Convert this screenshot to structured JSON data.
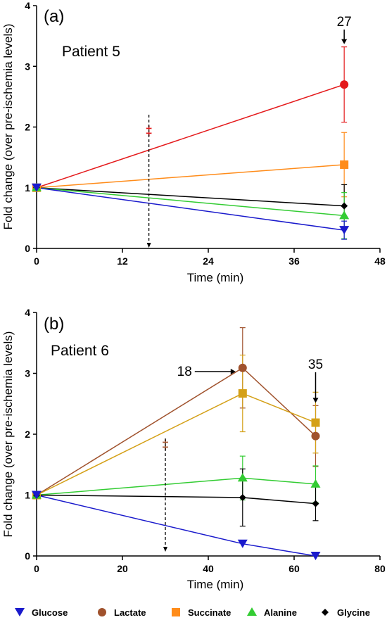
{
  "chart_data": [
    {
      "type": "line",
      "panel_label": "(a)",
      "patient_label": "Patient 5",
      "xlabel": "Time (min)",
      "ylabel": "Fold change (over pre-ischemia levels)",
      "xlim": [
        0,
        48
      ],
      "ylim": [
        0,
        4
      ],
      "xticks": [
        "0",
        "12",
        "24",
        "36",
        "48"
      ],
      "yticks": [
        "0",
        "1",
        "2",
        "3",
        "4"
      ],
      "x": [
        0,
        43
      ],
      "series": [
        {
          "name": "Lactate",
          "color": "#e41a1c",
          "marker": "circle",
          "values": [
            1,
            2.7
          ],
          "errors": [
            0,
            0.62
          ]
        },
        {
          "name": "Succinate",
          "color": "#ff8c1a",
          "marker": "square",
          "values": [
            1,
            1.38
          ],
          "errors": [
            0,
            0.53
          ]
        },
        {
          "name": "Glycine",
          "color": "#000000",
          "marker": "diamond",
          "values": [
            1,
            0.7
          ],
          "errors": [
            0,
            0.35
          ]
        },
        {
          "name": "Alanine",
          "color": "#33cc33",
          "marker": "triangle-up",
          "values": [
            1,
            0.54
          ],
          "errors": [
            0,
            0.38
          ]
        },
        {
          "name": "Glucose",
          "color": "#1a1acc",
          "marker": "triangle-down",
          "values": [
            1,
            0.3
          ],
          "errors": [
            0,
            0.15
          ]
        }
      ],
      "annotations": [
        {
          "text": "‡",
          "x": 15.7,
          "color": "#e41a1c",
          "arrow": "dashed-down"
        },
        {
          "text": "27",
          "x": 43,
          "arrow": "solid-down"
        }
      ]
    },
    {
      "type": "line",
      "panel_label": "(b)",
      "patient_label": "Patient 6",
      "xlabel": "Time (min)",
      "ylabel": "Fold change (over pre-ischemia levels)",
      "xlim": [
        0,
        80
      ],
      "ylim": [
        0,
        4
      ],
      "xticks": [
        "0",
        "20",
        "40",
        "60",
        "80"
      ],
      "yticks": [
        "0",
        "1",
        "2",
        "3",
        "4"
      ],
      "x": [
        0,
        48,
        65
      ],
      "series": [
        {
          "name": "Lactate",
          "color": "#a0522d",
          "marker": "circle",
          "values": [
            1,
            3.09,
            1.97
          ],
          "errors": [
            0,
            0.66,
            0.5
          ]
        },
        {
          "name": "Succinate",
          "color": "#d4a017",
          "marker": "square",
          "values": [
            1,
            2.67,
            2.19
          ],
          "errors": [
            0,
            0.63,
            0.5
          ]
        },
        {
          "name": "Alanine",
          "color": "#33cc33",
          "marker": "triangle-up",
          "values": [
            1,
            1.28,
            1.18
          ],
          "errors": [
            0,
            0.36,
            0.3
          ]
        },
        {
          "name": "Glycine",
          "color": "#000000",
          "marker": "diamond",
          "values": [
            1,
            0.96,
            0.86
          ],
          "errors": [
            0,
            0.47,
            0.28
          ]
        },
        {
          "name": "Glucose",
          "color": "#1a1acc",
          "marker": "triangle-down",
          "values": [
            1,
            0.2,
            0.0
          ],
          "errors": [
            0,
            0.0,
            0.0
          ]
        }
      ],
      "annotations": [
        {
          "text": "‡",
          "x": 30,
          "color": "#a0522d",
          "arrow": "dashed-down"
        },
        {
          "text": "18",
          "x": 48,
          "arrow": "solid-right"
        },
        {
          "text": "35",
          "x": 65,
          "arrow": "solid-down"
        }
      ]
    }
  ],
  "legend": [
    {
      "label": "Glucose",
      "color": "#1a1acc",
      "marker": "triangle-down"
    },
    {
      "label": "Lactate",
      "color": "#a0522d",
      "marker": "circle"
    },
    {
      "label": "Succinate",
      "color": "#ff8c1a",
      "marker": "square"
    },
    {
      "label": "Alanine",
      "color": "#33cc33",
      "marker": "triangle-up"
    },
    {
      "label": "Glycine",
      "color": "#000000",
      "marker": "diamond"
    }
  ]
}
